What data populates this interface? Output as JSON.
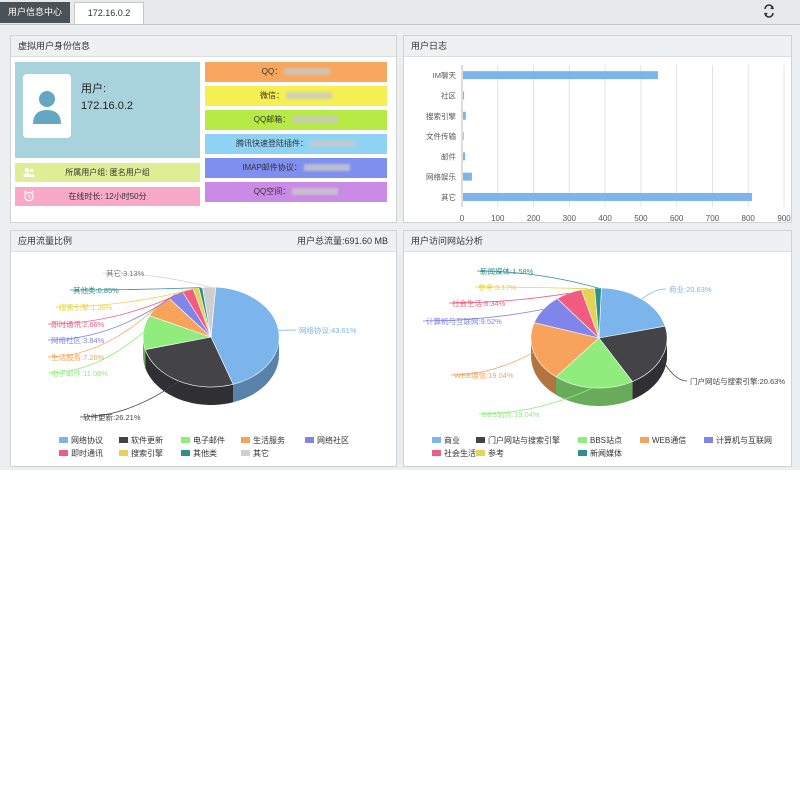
{
  "tabs": [
    {
      "label": "用户信息中心"
    },
    {
      "label": "172.16.0.2"
    }
  ],
  "identity": {
    "title": "虚拟用户身份信息",
    "user_label": "用户:",
    "user_ip": "172.16.0.2",
    "group": "所属用户组: 匿名用户组",
    "online": "在线时长: 12小时50分",
    "accounts": [
      {
        "label": "QQ：",
        "color": "#f7a75e"
      },
      {
        "label": "微信：",
        "color": "#f6ef54"
      },
      {
        "label": "QQ邮箱：",
        "color": "#b7ea44"
      },
      {
        "label": "腾讯快速登陆插件：",
        "color": "#8fd3f4"
      },
      {
        "label": "IMAP邮件协议：",
        "color": "#7f8ff0"
      },
      {
        "label": "QQ空间：",
        "color": "#c98be6"
      }
    ]
  },
  "user_log": {
    "title": "用户日志",
    "chart_data": {
      "type": "bar",
      "orientation": "horizontal",
      "categories": [
        "IM聊天",
        "社区",
        "搜索引擎",
        "文件传输",
        "邮件",
        "网络娱乐",
        "其它"
      ],
      "values": [
        545,
        3,
        8,
        2,
        6,
        25,
        808
      ],
      "xlim": [
        0,
        900
      ],
      "xticks": [
        "0",
        "100",
        "200",
        "300",
        "400",
        "500",
        "600",
        "700",
        "800",
        "900"
      ],
      "grid": true,
      "color": "#7cb5ec"
    }
  },
  "app_traffic": {
    "title": "应用流量比例",
    "total": "用户总流量:691.60 MB",
    "chart_data": {
      "type": "pie",
      "slices": [
        {
          "name": "网络协议",
          "label": "网络协议:43.61%",
          "value": 43.61,
          "color": "#7cb5ec"
        },
        {
          "name": "软件更新",
          "label": "软件更新:26.21%",
          "value": 26.21,
          "color": "#434348"
        },
        {
          "name": "电子邮件",
          "label": "电子邮件:11.08%",
          "value": 11.08,
          "color": "#90ed7d"
        },
        {
          "name": "生活服务",
          "label": "生活服务:7.26%",
          "value": 7.26,
          "color": "#f7a35c"
        },
        {
          "name": "网络社区",
          "label": "网络社区:3.84%",
          "value": 3.84,
          "color": "#8085e9"
        },
        {
          "name": "即时通讯",
          "label": "即时通讯:2.66%",
          "value": 2.66,
          "color": "#f15c80"
        },
        {
          "name": "搜索引擎",
          "label": "搜索引擎:1.36%",
          "value": 1.36,
          "color": "#e4d354"
        },
        {
          "name": "其他类",
          "label": "其他类:0.85%",
          "value": 0.85,
          "color": "#2b908f"
        },
        {
          "name": "其它",
          "label": "其它:3.13%",
          "value": 3.13,
          "color": "#cfcfcf"
        }
      ]
    }
  },
  "site_visits": {
    "title": "用户访问网站分析",
    "chart_data": {
      "type": "pie",
      "slices": [
        {
          "name": "商业",
          "label": "商业:20.63%",
          "value": 20.63,
          "color": "#7cb5ec"
        },
        {
          "name": "门户网站与搜索引擎",
          "label": "门户网站与搜索引擎:20.63%",
          "value": 20.63,
          "color": "#434348"
        },
        {
          "name": "BBS站点",
          "label": "BBS站点:19.04%",
          "value": 19.04,
          "color": "#90ed7d"
        },
        {
          "name": "WEB通信",
          "label": "WEB通信:19.04%",
          "value": 19.04,
          "color": "#f7a35c"
        },
        {
          "name": "计算机与互联网",
          "label": "计算机与互联网:9.52%",
          "value": 9.52,
          "color": "#8085e9"
        },
        {
          "name": "社会生活",
          "label": "社会生活:6.34%",
          "value": 6.34,
          "color": "#f15c80"
        },
        {
          "name": "参考",
          "label": "参考:3.17%",
          "value": 3.17,
          "color": "#e4d354"
        },
        {
          "name": "新闻媒体",
          "label": "新闻媒体:1.58%",
          "value": 1.58,
          "color": "#2b908f"
        }
      ]
    }
  }
}
